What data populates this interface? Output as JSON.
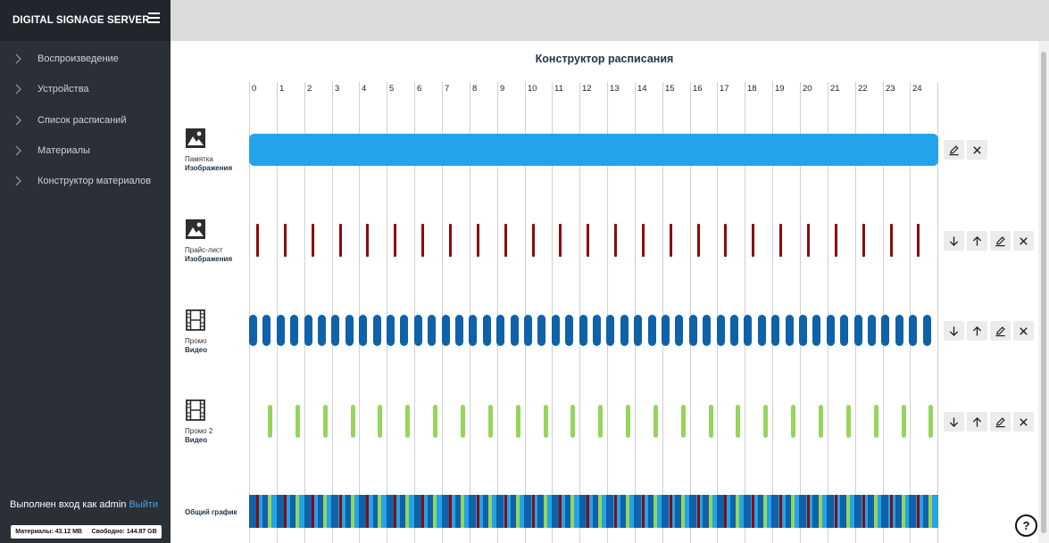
{
  "app": {
    "title": "DIGITAL SIGNAGE SERVER"
  },
  "sidebar": {
    "items": [
      {
        "label": "Воспроизведение"
      },
      {
        "label": "Устройства"
      },
      {
        "label": "Список расписаний"
      },
      {
        "label": "Материалы"
      },
      {
        "label": "Конструктор материалов"
      }
    ],
    "login_text": "Выполнен вход как admin",
    "logout_label": "Выйти",
    "storage_materials": "Материалы: 43.12 MB",
    "storage_free": "Свободно: 144.87 GB"
  },
  "main": {
    "title": "Конструктор расписания",
    "hours": [
      "0",
      "1",
      "2",
      "3",
      "4",
      "5",
      "6",
      "7",
      "8",
      "9",
      "10",
      "11",
      "12",
      "13",
      "14",
      "15",
      "16",
      "17",
      "18",
      "19",
      "20",
      "21",
      "22",
      "23",
      "24"
    ],
    "rows": [
      {
        "name": "Памятка",
        "type": "Изображения",
        "icon": "image-icon",
        "color": "#23a3ea",
        "pattern": "full"
      },
      {
        "name": "Прайс-лист",
        "type": "Изображения",
        "icon": "image-icon",
        "color": "#8b0b0b",
        "pattern": "ticks"
      },
      {
        "name": "Промо",
        "type": "Видео",
        "icon": "film-icon",
        "color": "#0f62a8",
        "pattern": "blocks"
      },
      {
        "name": "Промо 2",
        "type": "Видео",
        "icon": "film-icon",
        "color": "#96d55a",
        "pattern": "pills"
      }
    ],
    "summary_label": "Общий график",
    "help_label": "?"
  }
}
